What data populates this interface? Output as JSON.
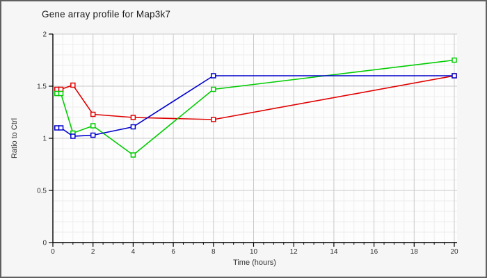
{
  "chart_data": {
    "type": "line",
    "title": "Gene array profile for Map3k7",
    "xlabel": "Time (hours)",
    "ylabel": "Ratio to Ctrl",
    "xlim": [
      0,
      20
    ],
    "ylim": [
      0,
      2
    ],
    "x_major_ticks": [
      0,
      2,
      4,
      6,
      8,
      10,
      12,
      14,
      16,
      18,
      20
    ],
    "x_minor_step": 0.5,
    "y_major_ticks": [
      0,
      0.5,
      1,
      1.5,
      2
    ],
    "y_minor_step": 0.1,
    "grid": true,
    "legend_position": "none",
    "marker_style": "open-square",
    "x": [
      0.2,
      0.4,
      1,
      2,
      4,
      8,
      20
    ],
    "series": [
      {
        "name": "series-red",
        "color": "#e00000",
        "values": [
          1.47,
          1.47,
          1.51,
          1.23,
          1.2,
          1.18,
          1.6
        ]
      },
      {
        "name": "series-green",
        "color": "#00cc00",
        "values": [
          1.43,
          1.43,
          1.05,
          1.12,
          0.84,
          1.47,
          1.75
        ]
      },
      {
        "name": "series-blue",
        "color": "#0000cc",
        "values": [
          1.1,
          1.1,
          1.02,
          1.03,
          1.11,
          1.6,
          1.6
        ]
      }
    ]
  },
  "colors": {
    "frame_border": "#606060",
    "panel_bg": "#f6f6f6",
    "plot_bg": "#fdfdfd",
    "grid_minor": "#ededed",
    "grid_major": "#c9c9c9",
    "axis": "#000000",
    "tick_label": "#333333",
    "marker_fill": "#ffffff",
    "title_text": "#1a1a1a"
  }
}
